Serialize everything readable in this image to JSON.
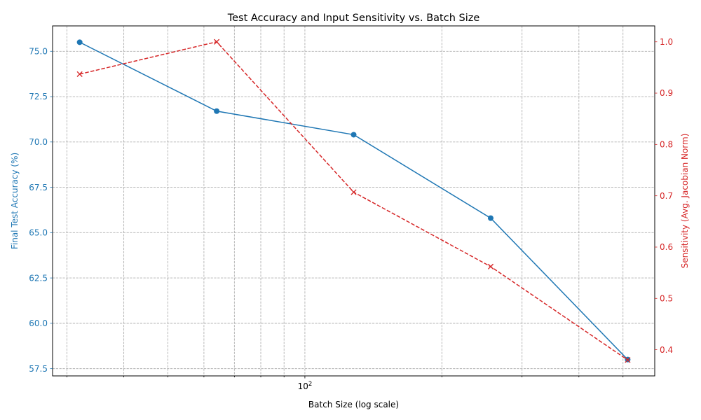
{
  "chart_data": {
    "type": "line",
    "title": "Test Accuracy and Input Sensitivity vs. Batch Size",
    "xlabel": "Batch Size (log scale)",
    "ylabel_left": "Final Test Accuracy (%)",
    "ylabel_right": "Sensitivity (Avg. Jacobian Norm)",
    "x_scale": "log",
    "x": [
      32,
      64,
      128,
      256,
      512
    ],
    "xlim": [
      27.9,
      587.1
    ],
    "x_ticks": [
      {
        "value": 100,
        "base": "10",
        "exp": "2"
      }
    ],
    "x_minor_ticks": [
      30,
      40,
      50,
      60,
      70,
      80,
      90,
      200,
      300,
      400,
      500
    ],
    "y_left": {
      "lim": [
        57.1,
        76.4
      ],
      "ticks": [
        "57.5",
        "60.0",
        "62.5",
        "65.0",
        "67.5",
        "70.0",
        "72.5",
        "75.0"
      ],
      "color": "#1f77b4"
    },
    "y_right": {
      "lim": [
        0.349,
        1.031
      ],
      "ticks": [
        "0.4",
        "0.5",
        "0.6",
        "0.7",
        "0.8",
        "0.9",
        "1.0"
      ],
      "color": "#d62728"
    },
    "grid": true,
    "series": [
      {
        "axis": "left",
        "color": "#1f77b4",
        "style": "solid",
        "marker": "circle",
        "values": [
          75.5,
          71.7,
          70.4,
          65.8,
          58.0
        ]
      },
      {
        "axis": "right",
        "color": "#d62728",
        "style": "dashed",
        "marker": "x",
        "values": [
          0.937,
          1.0,
          0.707,
          0.562,
          0.38
        ]
      }
    ]
  }
}
